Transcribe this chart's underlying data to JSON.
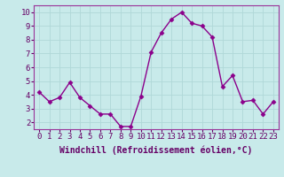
{
  "x": [
    0,
    1,
    2,
    3,
    4,
    5,
    6,
    7,
    8,
    9,
    10,
    11,
    12,
    13,
    14,
    15,
    16,
    17,
    18,
    19,
    20,
    21,
    22,
    23
  ],
  "y": [
    4.2,
    3.5,
    3.8,
    4.9,
    3.8,
    3.2,
    2.6,
    2.6,
    1.7,
    1.7,
    3.9,
    7.1,
    8.5,
    9.5,
    10.0,
    9.2,
    9.0,
    8.2,
    4.6,
    5.4,
    3.5,
    3.6,
    2.6,
    3.5
  ],
  "line_color": "#8B008B",
  "marker": "D",
  "marker_size": 2.5,
  "line_width": 1.0,
  "xlabel": "Windchill (Refroidissement éolien,°C)",
  "ylabel_ticks": [
    2,
    3,
    4,
    5,
    6,
    7,
    8,
    9,
    10
  ],
  "xlim": [
    -0.5,
    23.5
  ],
  "ylim": [
    1.5,
    10.5
  ],
  "xtick_labels": [
    "0",
    "1",
    "2",
    "3",
    "4",
    "5",
    "6",
    "7",
    "8",
    "9",
    "10",
    "11",
    "12",
    "13",
    "14",
    "15",
    "16",
    "17",
    "18",
    "19",
    "20",
    "21",
    "22",
    "23"
  ],
  "bg_color": "#c8eaea",
  "grid_color": "#b0d8d8",
  "axis_label_color": "#660066",
  "tick_color": "#660066",
  "xlabel_fontsize": 7,
  "tick_fontsize": 6.5,
  "spine_color": "#993399"
}
